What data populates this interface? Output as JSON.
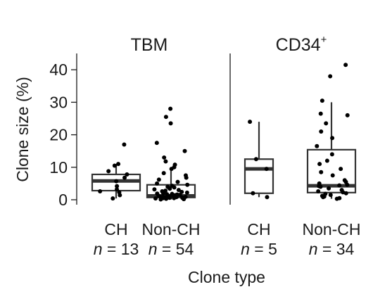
{
  "chart_data": {
    "type": "box",
    "ylabel": "Clone size (%)",
    "xlabel": "Clone type",
    "ylim": [
      0,
      43
    ],
    "yticks": [
      0,
      10,
      20,
      30,
      40
    ],
    "panels": [
      {
        "title": "TBM",
        "title_sup": "",
        "groups": [
          {
            "category": "CH",
            "n_label": "n = 13",
            "n_prefix": "n",
            "n_rest": " = 13",
            "box": {
              "q1": 2.8,
              "median": 5.8,
              "q3": 7.8,
              "whisker_low": 0.4,
              "whisker_high": 11.0
            },
            "points": [
              17.0,
              11.0,
              10.5,
              8.8,
              7.8,
              6.8,
              5.7,
              4.2,
              3.2,
              2.6,
              2.3,
              1.4,
              0.4
            ]
          },
          {
            "category": "Non-CH",
            "n_label": "n = 54",
            "n_prefix": "n",
            "n_rest": " = 54",
            "box": {
              "q1": 0.7,
              "median": 1.2,
              "q3": 4.6,
              "whisker_low": 0.1,
              "whisker_high": 9.5
            },
            "points": [
              28.0,
              25.5,
              23.5,
              17.5,
              15.0,
              13.0,
              11.8,
              10.8,
              10.0,
              9.5,
              8.2,
              7.5,
              6.8,
              6.2,
              5.5,
              5.0,
              4.6,
              4.3,
              4.0,
              3.8,
              3.6,
              3.4,
              3.2,
              3.0,
              2.8,
              2.6,
              2.4,
              2.2,
              2.0,
              1.9,
              1.8,
              1.7,
              1.6,
              1.5,
              1.4,
              1.3,
              1.2,
              1.1,
              1.0,
              1.0,
              0.9,
              0.9,
              0.8,
              0.8,
              0.7,
              0.7,
              0.6,
              0.6,
              0.5,
              0.5,
              0.4,
              0.3,
              0.2,
              0.1
            ]
          }
        ]
      },
      {
        "title": "CD34",
        "title_sup": "+",
        "groups": [
          {
            "category": "CH",
            "n_label": "n = 5",
            "n_prefix": "n",
            "n_rest": " = 5",
            "box": {
              "q1": 2.0,
              "median": 9.5,
              "q3": 12.5,
              "whisker_low": 0.8,
              "whisker_high": 24.0
            },
            "points": [
              24.0,
              12.5,
              9.5,
              2.0,
              0.8
            ]
          },
          {
            "category": "Non-CH",
            "n_label": "n = 34",
            "n_prefix": "n",
            "n_rest": " = 34",
            "box": {
              "q1": 2.2,
              "median": 4.3,
              "q3": 15.4,
              "whisker_low": 0.3,
              "whisker_high": 30.0
            },
            "points": [
              41.5,
              38.0,
              30.5,
              26.5,
              26.0,
              23.5,
              21.0,
              19.0,
              16.5,
              14.0,
              12.0,
              11.0,
              9.5,
              8.5,
              7.5,
              6.0,
              5.5,
              5.0,
              4.6,
              4.4,
              4.2,
              4.0,
              3.5,
              3.0,
              2.6,
              2.3,
              2.0,
              1.8,
              1.5,
              1.2,
              1.0,
              0.8,
              0.5,
              0.3
            ]
          }
        ]
      }
    ]
  }
}
